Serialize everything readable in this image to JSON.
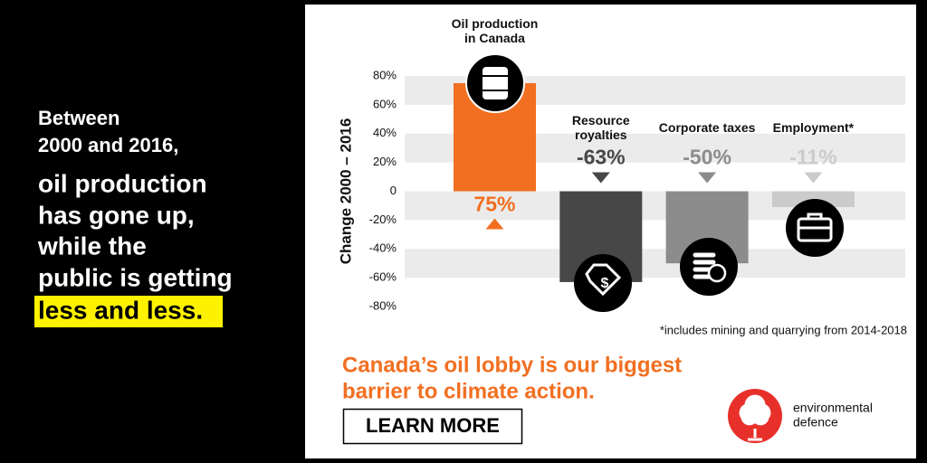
{
  "intro": [
    "Between",
    "2000 and 2016,"
  ],
  "headline": [
    "oil production",
    "has gone up,",
    "while the",
    "public is getting"
  ],
  "highlight": "less and less.",
  "chart_data": {
    "type": "bar",
    "ylabel": "Change 2000 – 2016",
    "categories": [
      "Oil production in Canada",
      "Resource royalties",
      "Corporate taxes",
      "Employment*"
    ],
    "values": [
      75,
      -63,
      -50,
      -11
    ],
    "value_labels": [
      "75%",
      "-63%",
      "-50%",
      "-11%"
    ],
    "colors": [
      "#f26f21",
      "#474747",
      "#8c8c8c",
      "#cbcbcb"
    ],
    "ylim": [
      -80,
      80
    ],
    "yticks": [
      {
        "value": 80,
        "label": "80%"
      },
      {
        "value": 60,
        "label": "60%"
      },
      {
        "value": 40,
        "label": "40%"
      },
      {
        "value": 20,
        "label": "20%"
      },
      0,
      {
        "value": -20,
        "label": "-20%"
      },
      {
        "value": -40,
        "label": "-40%"
      },
      {
        "value": -60,
        "label": "-60%"
      },
      {
        "value": -80,
        "label": "-80%"
      }
    ],
    "grid": "stripes",
    "footnote": "*includes mining and quarrying from 2014-2018"
  },
  "cta": [
    "Canada’s oil lobby is our biggest",
    "barrier to climate action."
  ],
  "button": "LEARN MORE",
  "logo": [
    "environmental",
    "defence"
  ]
}
